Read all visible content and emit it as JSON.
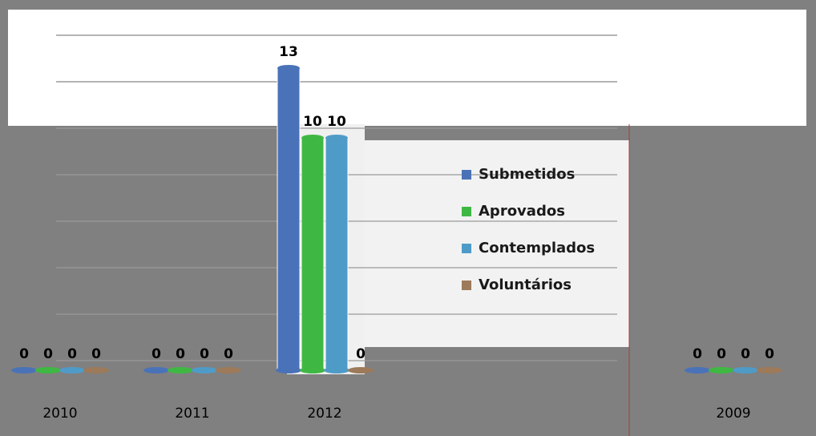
{
  "chart_data": {
    "type": "bar",
    "categories": [
      "2010",
      "2011",
      "2012",
      "2009"
    ],
    "series": [
      {
        "name": "Submetidos",
        "color": "#4a72b8",
        "values": [
          0,
          0,
          13,
          0
        ]
      },
      {
        "name": "Aprovados",
        "color": "#3fb843",
        "values": [
          0,
          0,
          10,
          0
        ]
      },
      {
        "name": "Contemplados",
        "color": "#4f9bc8",
        "values": [
          0,
          0,
          10,
          0
        ]
      },
      {
        "name": "Voluntários",
        "color": "#9c7a5a",
        "values": [
          0,
          0,
          0,
          0
        ]
      }
    ],
    "ylim": [
      0,
      14
    ],
    "yticks": [
      0,
      2,
      4,
      6,
      8,
      10,
      12,
      14
    ],
    "grid": true,
    "legend": "right"
  }
}
